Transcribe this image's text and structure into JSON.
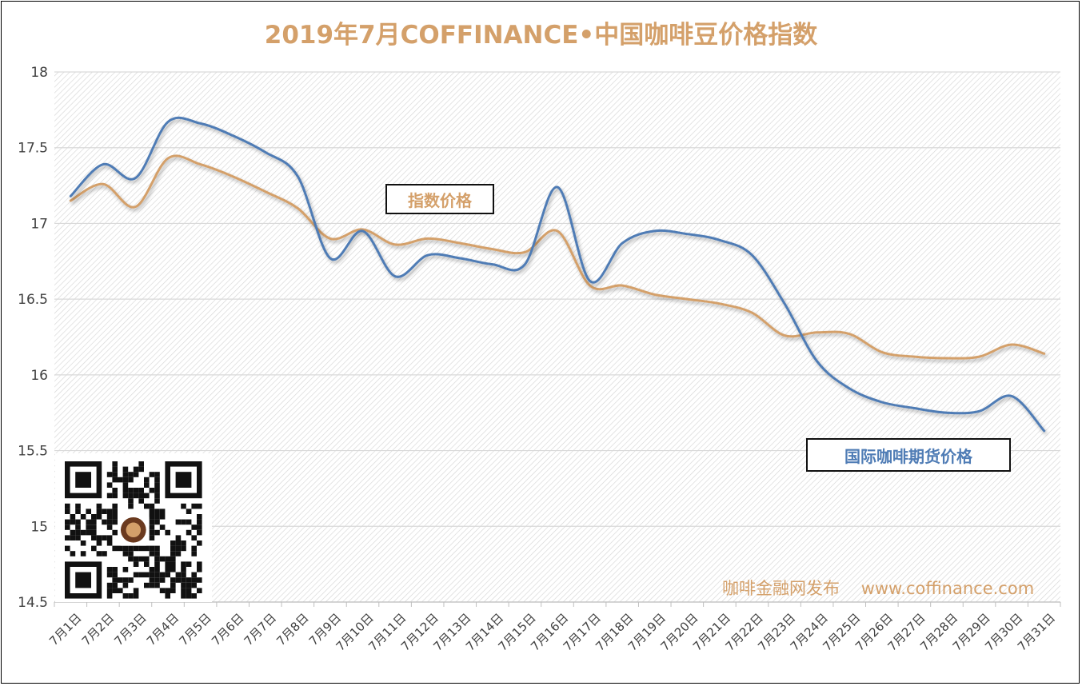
{
  "title": "2019年7月COFFINANCE•中国咖啡豆价格指数",
  "colors": {
    "index": "#d4a06a",
    "futures": "#4f7cb5",
    "grid": "#d9d9d9",
    "title": "#d4a06a"
  },
  "labels": {
    "index": "指数价格",
    "futures": "国际咖啡期货价格",
    "credit": "咖啡金融网发布    www.coffinance.com"
  },
  "qr_icon": "qr-code-icon",
  "chart_data": {
    "type": "line",
    "title": "2019年7月COFFINANCE•中国咖啡豆价格指数",
    "xlabel": "",
    "ylabel": "",
    "ylim": [
      14.5,
      18
    ],
    "yticks": [
      "14.5",
      "15",
      "15.5",
      "16",
      "16.5",
      "17",
      "17.5",
      "18"
    ],
    "grid": "horizontal",
    "legend": "none (callout labels on plot)",
    "categories": [
      "7月1日",
      "7月2日",
      "7月3日",
      "7月4日",
      "7月5日",
      "7月6日",
      "7月7日",
      "7月8日",
      "7月9日",
      "7月10日",
      "7月11日",
      "7月12日",
      "7月13日",
      "7月14日",
      "7月15日",
      "7月16日",
      "7月17日",
      "7月18日",
      "7月19日",
      "7月20日",
      "7月21日",
      "7月22日",
      "7月23日",
      "7月24日",
      "7月25日",
      "7月26日",
      "7月27日",
      "7月28日",
      "7月29日",
      "7月30日",
      "7月31日"
    ],
    "series": [
      {
        "name": "指数价格",
        "color": "#d4a06a",
        "values": [
          17.15,
          17.26,
          17.11,
          17.43,
          17.39,
          17.31,
          17.21,
          17.1,
          16.9,
          16.96,
          16.86,
          16.9,
          16.87,
          16.83,
          16.81,
          16.95,
          16.59,
          16.59,
          16.53,
          16.5,
          16.47,
          16.41,
          16.26,
          16.28,
          16.27,
          16.15,
          16.12,
          16.11,
          16.12,
          16.2,
          16.14
        ]
      },
      {
        "name": "国际咖啡期货价格",
        "color": "#4f7cb5",
        "values": [
          17.18,
          17.39,
          17.3,
          17.67,
          17.66,
          17.58,
          17.47,
          17.31,
          16.77,
          16.95,
          16.65,
          16.79,
          16.77,
          16.73,
          16.73,
          17.24,
          16.62,
          16.87,
          16.95,
          16.93,
          16.89,
          16.79,
          16.47,
          16.09,
          15.91,
          15.82,
          15.78,
          15.75,
          15.76,
          15.86,
          15.63
        ]
      }
    ]
  }
}
